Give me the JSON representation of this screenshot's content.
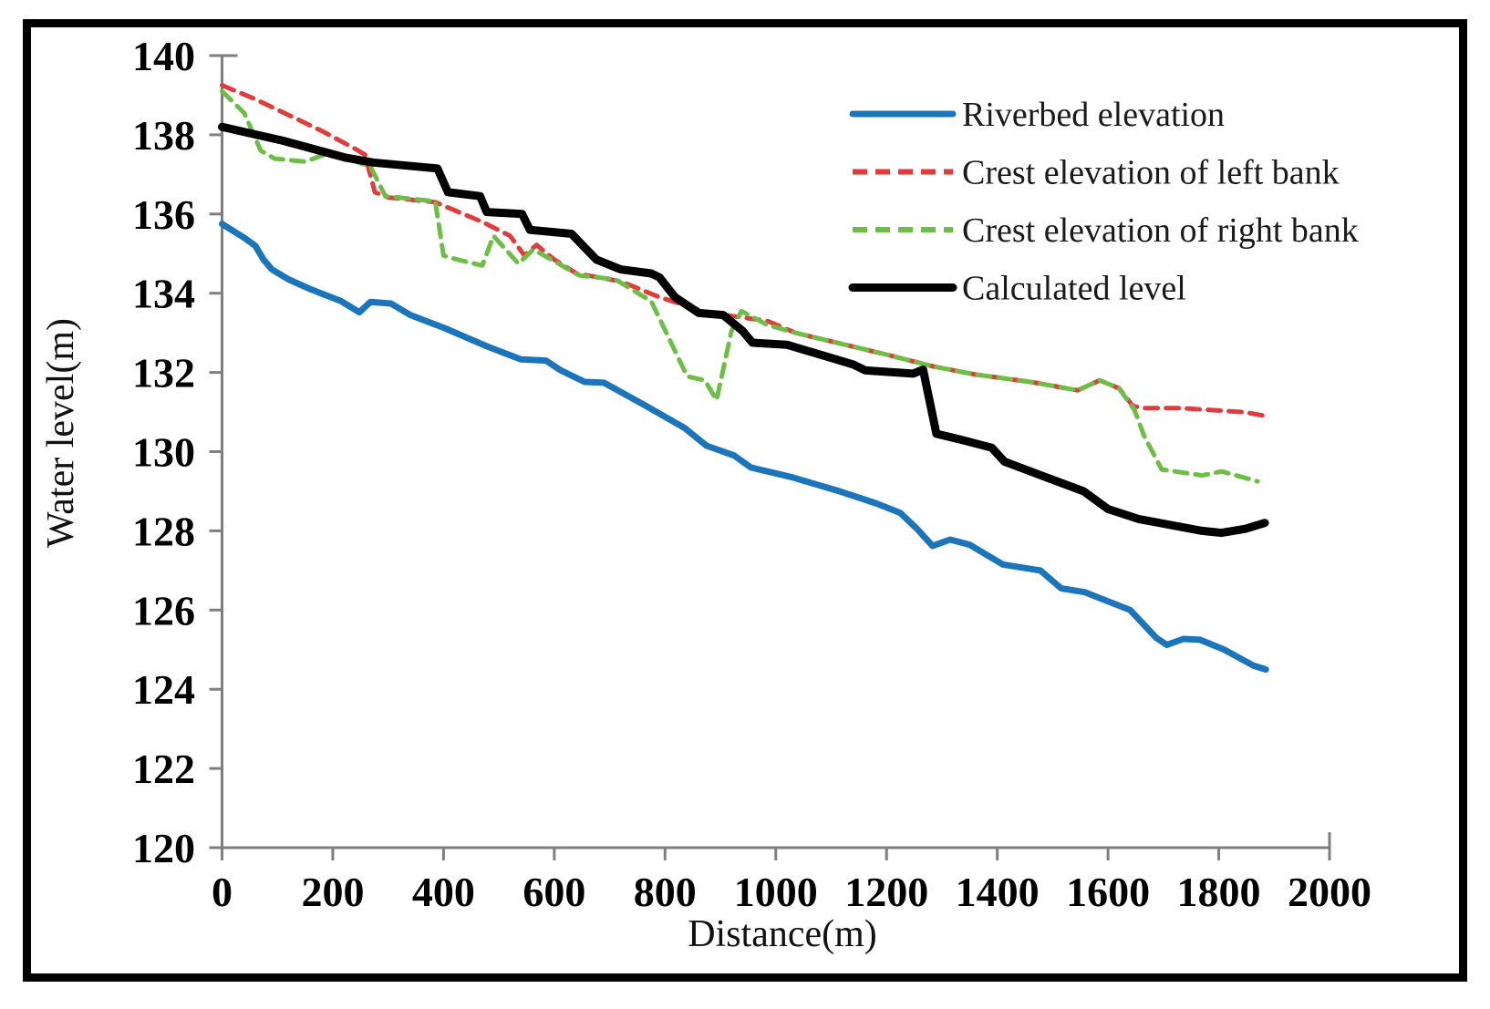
{
  "figure": {
    "background": "#ffffff",
    "frame_color": "#000000"
  },
  "chart_data": {
    "type": "line",
    "title": "",
    "xlabel": "Distance(m)",
    "ylabel": "Water level(m)",
    "xlim": [
      0,
      2000
    ],
    "ylim": [
      120,
      140
    ],
    "x_ticks": [
      0,
      200,
      400,
      600,
      800,
      1000,
      1200,
      1400,
      1600,
      1800,
      2000
    ],
    "y_ticks": [
      120,
      122,
      124,
      126,
      128,
      130,
      132,
      134,
      136,
      138,
      140
    ],
    "grid": false,
    "axis_color": "#7f7f7f",
    "tick_label_color": "#000000",
    "legend_position": "inside-top-right",
    "series": [
      {
        "name": "Riverbed elevation",
        "color": "#1b75bb",
        "line_style": "solid",
        "line_width": 7,
        "points": [
          [
            0,
            135.75
          ],
          [
            40,
            135.4
          ],
          [
            60,
            135.2
          ],
          [
            75,
            134.85
          ],
          [
            90,
            134.6
          ],
          [
            120,
            134.35
          ],
          [
            160,
            134.1
          ],
          [
            215,
            133.8
          ],
          [
            248,
            133.52
          ],
          [
            268,
            133.78
          ],
          [
            305,
            133.74
          ],
          [
            340,
            133.45
          ],
          [
            400,
            133.13
          ],
          [
            480,
            132.65
          ],
          [
            540,
            132.33
          ],
          [
            585,
            132.3
          ],
          [
            612,
            132.05
          ],
          [
            655,
            131.76
          ],
          [
            690,
            131.74
          ],
          [
            760,
            131.2
          ],
          [
            835,
            130.6
          ],
          [
            875,
            130.15
          ],
          [
            925,
            129.9
          ],
          [
            955,
            129.6
          ],
          [
            1030,
            129.35
          ],
          [
            1115,
            129.0
          ],
          [
            1180,
            128.7
          ],
          [
            1225,
            128.45
          ],
          [
            1255,
            128.05
          ],
          [
            1283,
            127.62
          ],
          [
            1315,
            127.78
          ],
          [
            1350,
            127.65
          ],
          [
            1410,
            127.15
          ],
          [
            1478,
            127.0
          ],
          [
            1515,
            126.55
          ],
          [
            1558,
            126.45
          ],
          [
            1640,
            126.0
          ],
          [
            1687,
            125.3
          ],
          [
            1706,
            125.12
          ],
          [
            1736,
            125.27
          ],
          [
            1766,
            125.25
          ],
          [
            1810,
            125.0
          ],
          [
            1862,
            124.6
          ],
          [
            1885,
            124.5
          ]
        ]
      },
      {
        "name": "Crest elevation of left bank",
        "color": "#e23b3c",
        "line_style": "dashed",
        "line_width": 5,
        "points": [
          [
            0,
            139.25
          ],
          [
            60,
            138.9
          ],
          [
            120,
            138.5
          ],
          [
            180,
            138.1
          ],
          [
            240,
            137.65
          ],
          [
            258,
            137.5
          ],
          [
            276,
            136.55
          ],
          [
            300,
            136.42
          ],
          [
            385,
            136.3
          ],
          [
            470,
            135.8
          ],
          [
            520,
            135.45
          ],
          [
            546,
            134.95
          ],
          [
            568,
            135.22
          ],
          [
            600,
            134.85
          ],
          [
            640,
            134.5
          ],
          [
            720,
            134.3
          ],
          [
            790,
            133.9
          ],
          [
            880,
            133.5
          ],
          [
            985,
            133.3
          ],
          [
            1035,
            133.0
          ],
          [
            1200,
            132.45
          ],
          [
            1285,
            132.15
          ],
          [
            1360,
            131.95
          ],
          [
            1465,
            131.75
          ],
          [
            1545,
            131.55
          ],
          [
            1585,
            131.8
          ],
          [
            1620,
            131.6
          ],
          [
            1645,
            131.15
          ],
          [
            1665,
            131.1
          ],
          [
            1730,
            131.1
          ],
          [
            1845,
            131.0
          ],
          [
            1885,
            130.9
          ]
        ]
      },
      {
        "name": "Crest elevation of right bank",
        "color": "#6cbe45",
        "line_style": "dashed",
        "line_width": 5,
        "points": [
          [
            0,
            139.1
          ],
          [
            40,
            138.55
          ],
          [
            70,
            137.6
          ],
          [
            95,
            137.4
          ],
          [
            150,
            137.32
          ],
          [
            185,
            137.5
          ],
          [
            230,
            137.38
          ],
          [
            268,
            137.2
          ],
          [
            295,
            136.45
          ],
          [
            385,
            136.32
          ],
          [
            400,
            134.95
          ],
          [
            425,
            134.85
          ],
          [
            470,
            134.7
          ],
          [
            490,
            135.45
          ],
          [
            535,
            134.75
          ],
          [
            562,
            135.1
          ],
          [
            582,
            134.95
          ],
          [
            645,
            134.45
          ],
          [
            710,
            134.35
          ],
          [
            775,
            133.8
          ],
          [
            840,
            131.9
          ],
          [
            872,
            131.8
          ],
          [
            893,
            131.3
          ],
          [
            920,
            133.05
          ],
          [
            938,
            133.55
          ],
          [
            985,
            133.2
          ],
          [
            1035,
            133.0
          ],
          [
            1200,
            132.45
          ],
          [
            1285,
            132.15
          ],
          [
            1360,
            131.95
          ],
          [
            1465,
            131.75
          ],
          [
            1545,
            131.55
          ],
          [
            1585,
            131.8
          ],
          [
            1620,
            131.6
          ],
          [
            1648,
            131.05
          ],
          [
            1665,
            130.4
          ],
          [
            1697,
            129.55
          ],
          [
            1770,
            129.4
          ],
          [
            1805,
            129.5
          ],
          [
            1870,
            129.25
          ]
        ]
      },
      {
        "name": "Calculated level",
        "color": "#000000",
        "line_style": "solid",
        "line_width": 9,
        "points": [
          [
            0,
            138.2
          ],
          [
            110,
            137.85
          ],
          [
            224,
            137.42
          ],
          [
            273,
            137.3
          ],
          [
            389,
            137.15
          ],
          [
            408,
            136.55
          ],
          [
            466,
            136.45
          ],
          [
            478,
            136.05
          ],
          [
            542,
            136.0
          ],
          [
            556,
            135.6
          ],
          [
            631,
            135.5
          ],
          [
            676,
            134.85
          ],
          [
            720,
            134.6
          ],
          [
            775,
            134.5
          ],
          [
            790,
            134.4
          ],
          [
            818,
            133.9
          ],
          [
            861,
            133.5
          ],
          [
            905,
            133.45
          ],
          [
            940,
            133.05
          ],
          [
            958,
            132.75
          ],
          [
            1020,
            132.7
          ],
          [
            1140,
            132.2
          ],
          [
            1162,
            132.05
          ],
          [
            1248,
            131.97
          ],
          [
            1266,
            132.07
          ],
          [
            1290,
            130.45
          ],
          [
            1335,
            130.3
          ],
          [
            1390,
            130.1
          ],
          [
            1413,
            129.75
          ],
          [
            1460,
            129.5
          ],
          [
            1556,
            129.0
          ],
          [
            1600,
            128.55
          ],
          [
            1655,
            128.3
          ],
          [
            1770,
            128.0
          ],
          [
            1805,
            127.95
          ],
          [
            1848,
            128.05
          ],
          [
            1883,
            128.2
          ]
        ]
      }
    ]
  }
}
